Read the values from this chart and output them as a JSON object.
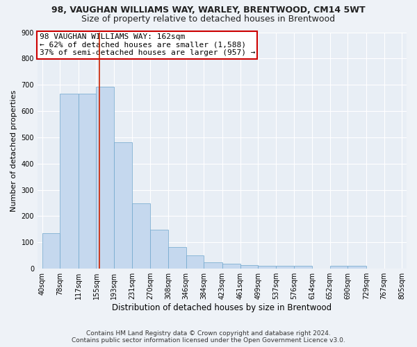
{
  "title_line1": "98, VAUGHAN WILLIAMS WAY, WARLEY, BRENTWOOD, CM14 5WT",
  "title_line2": "Size of property relative to detached houses in Brentwood",
  "xlabel": "Distribution of detached houses by size in Brentwood",
  "ylabel": "Number of detached properties",
  "annotation_line1": "98 VAUGHAN WILLIAMS WAY: 162sqm",
  "annotation_line2": "← 62% of detached houses are smaller (1,588)",
  "annotation_line3": "37% of semi-detached houses are larger (957) →",
  "footer_line1": "Contains HM Land Registry data © Crown copyright and database right 2024.",
  "footer_line2": "Contains public sector information licensed under the Open Government Licence v3.0.",
  "bin_edges": [
    40,
    78,
    117,
    155,
    193,
    231,
    270,
    308,
    346,
    384,
    423,
    461,
    499,
    537,
    576,
    614,
    652,
    690,
    729,
    767,
    805
  ],
  "bar_heights": [
    135,
    665,
    665,
    692,
    480,
    248,
    148,
    83,
    50,
    25,
    20,
    15,
    10,
    10,
    10,
    0,
    10,
    10,
    0,
    0
  ],
  "bar_color": "#c5d8ee",
  "bar_edge_color": "#6ea6cc",
  "red_line_x": 162,
  "ylim": [
    0,
    900
  ],
  "yticks": [
    0,
    100,
    200,
    300,
    400,
    500,
    600,
    700,
    800,
    900
  ],
  "x_tick_labels": [
    "40sqm",
    "78sqm",
    "117sqm",
    "155sqm",
    "193sqm",
    "231sqm",
    "270sqm",
    "308sqm",
    "346sqm",
    "384sqm",
    "423sqm",
    "461sqm",
    "499sqm",
    "537sqm",
    "576sqm",
    "614sqm",
    "652sqm",
    "690sqm",
    "729sqm",
    "767sqm",
    "805sqm"
  ],
  "bg_color": "#eef2f7",
  "plot_bg_color": "#e8eef5",
  "annotation_box_color": "#ffffff",
  "annotation_box_edge": "#cc0000",
  "red_line_color": "#cc2200",
  "title_fontsize": 9,
  "subtitle_fontsize": 9,
  "xlabel_fontsize": 8.5,
  "ylabel_fontsize": 8,
  "tick_fontsize": 7,
  "annotation_fontsize": 8,
  "footer_fontsize": 6.5,
  "xlim": [
    30,
    815
  ]
}
